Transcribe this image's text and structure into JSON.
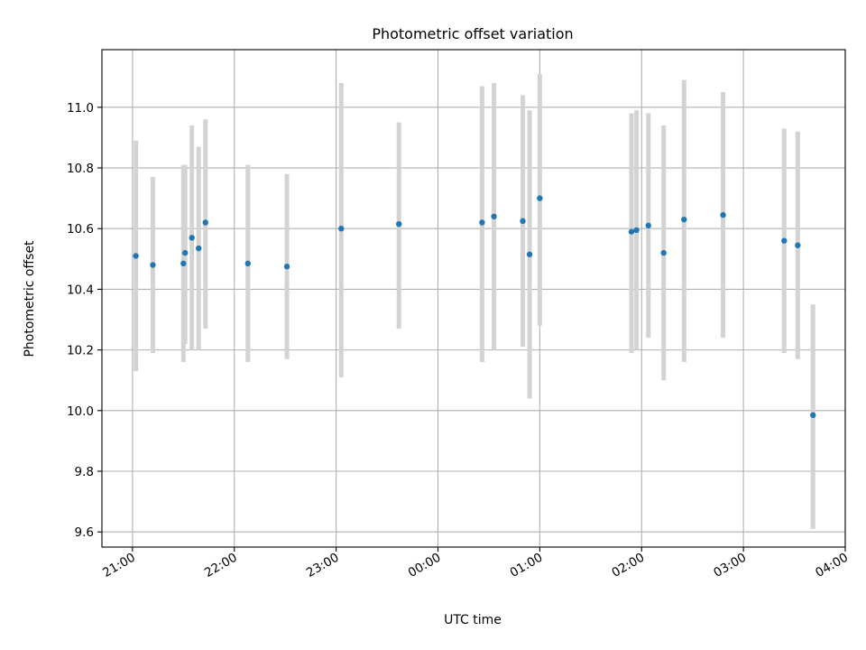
{
  "chart_data": {
    "type": "scatter",
    "title": "Photometric offset variation",
    "xlabel": "UTC time",
    "ylabel": "Photometric offset",
    "grid": true,
    "x_axis": {
      "kind": "time",
      "range": [
        "20:42",
        "04:00"
      ],
      "ticks": [
        "21:00",
        "22:00",
        "23:00",
        "00:00",
        "01:00",
        "02:00",
        "03:00",
        "04:00"
      ]
    },
    "y_axis": {
      "range": [
        9.55,
        11.19
      ],
      "ticks": [
        "9.6",
        "9.8",
        "10.0",
        "10.2",
        "10.4",
        "10.6",
        "10.8",
        "11.0"
      ]
    },
    "colors": {
      "point": "#1f77b4",
      "errorbar": "#d3d3d3",
      "grid": "#b0b0b0"
    },
    "series": [
      {
        "points": [
          {
            "x": "21:02",
            "y": 10.51,
            "ylow": 10.13,
            "yhigh": 10.89
          },
          {
            "x": "21:12",
            "y": 10.48,
            "ylow": 10.19,
            "yhigh": 10.77
          },
          {
            "x": "21:30",
            "y": 10.485,
            "ylow": 10.16,
            "yhigh": 10.81
          },
          {
            "x": "21:31",
            "y": 10.52,
            "ylow": 10.22,
            "yhigh": 10.81
          },
          {
            "x": "21:35",
            "y": 10.57,
            "ylow": 10.2,
            "yhigh": 10.94
          },
          {
            "x": "21:39",
            "y": 10.535,
            "ylow": 10.2,
            "yhigh": 10.87
          },
          {
            "x": "21:43",
            "y": 10.62,
            "ylow": 10.27,
            "yhigh": 10.96
          },
          {
            "x": "22:08",
            "y": 10.485,
            "ylow": 10.16,
            "yhigh": 10.81
          },
          {
            "x": "22:31",
            "y": 10.475,
            "ylow": 10.17,
            "yhigh": 10.78
          },
          {
            "x": "23:03",
            "y": 10.6,
            "ylow": 10.11,
            "yhigh": 11.08
          },
          {
            "x": "23:37",
            "y": 10.615,
            "ylow": 10.27,
            "yhigh": 10.95
          },
          {
            "x": "00:26",
            "y": 10.62,
            "ylow": 10.16,
            "yhigh": 11.07
          },
          {
            "x": "00:33",
            "y": 10.64,
            "ylow": 10.2,
            "yhigh": 11.08
          },
          {
            "x": "00:50",
            "y": 10.625,
            "ylow": 10.21,
            "yhigh": 11.04
          },
          {
            "x": "00:54",
            "y": 10.515,
            "ylow": 10.04,
            "yhigh": 10.99
          },
          {
            "x": "01:00",
            "y": 10.7,
            "ylow": 10.28,
            "yhigh": 11.11
          },
          {
            "x": "01:54",
            "y": 10.59,
            "ylow": 10.19,
            "yhigh": 10.98
          },
          {
            "x": "01:57",
            "y": 10.595,
            "ylow": 10.2,
            "yhigh": 10.99
          },
          {
            "x": "02:04",
            "y": 10.61,
            "ylow": 10.24,
            "yhigh": 10.98
          },
          {
            "x": "02:13",
            "y": 10.52,
            "ylow": 10.1,
            "yhigh": 10.94
          },
          {
            "x": "02:25",
            "y": 10.63,
            "ylow": 10.16,
            "yhigh": 11.09
          },
          {
            "x": "02:48",
            "y": 10.645,
            "ylow": 10.24,
            "yhigh": 11.05
          },
          {
            "x": "03:24",
            "y": 10.56,
            "ylow": 10.19,
            "yhigh": 10.93
          },
          {
            "x": "03:32",
            "y": 10.545,
            "ylow": 10.17,
            "yhigh": 10.92
          },
          {
            "x": "03:41",
            "y": 9.985,
            "ylow": 9.61,
            "yhigh": 10.35
          }
        ]
      }
    ]
  }
}
